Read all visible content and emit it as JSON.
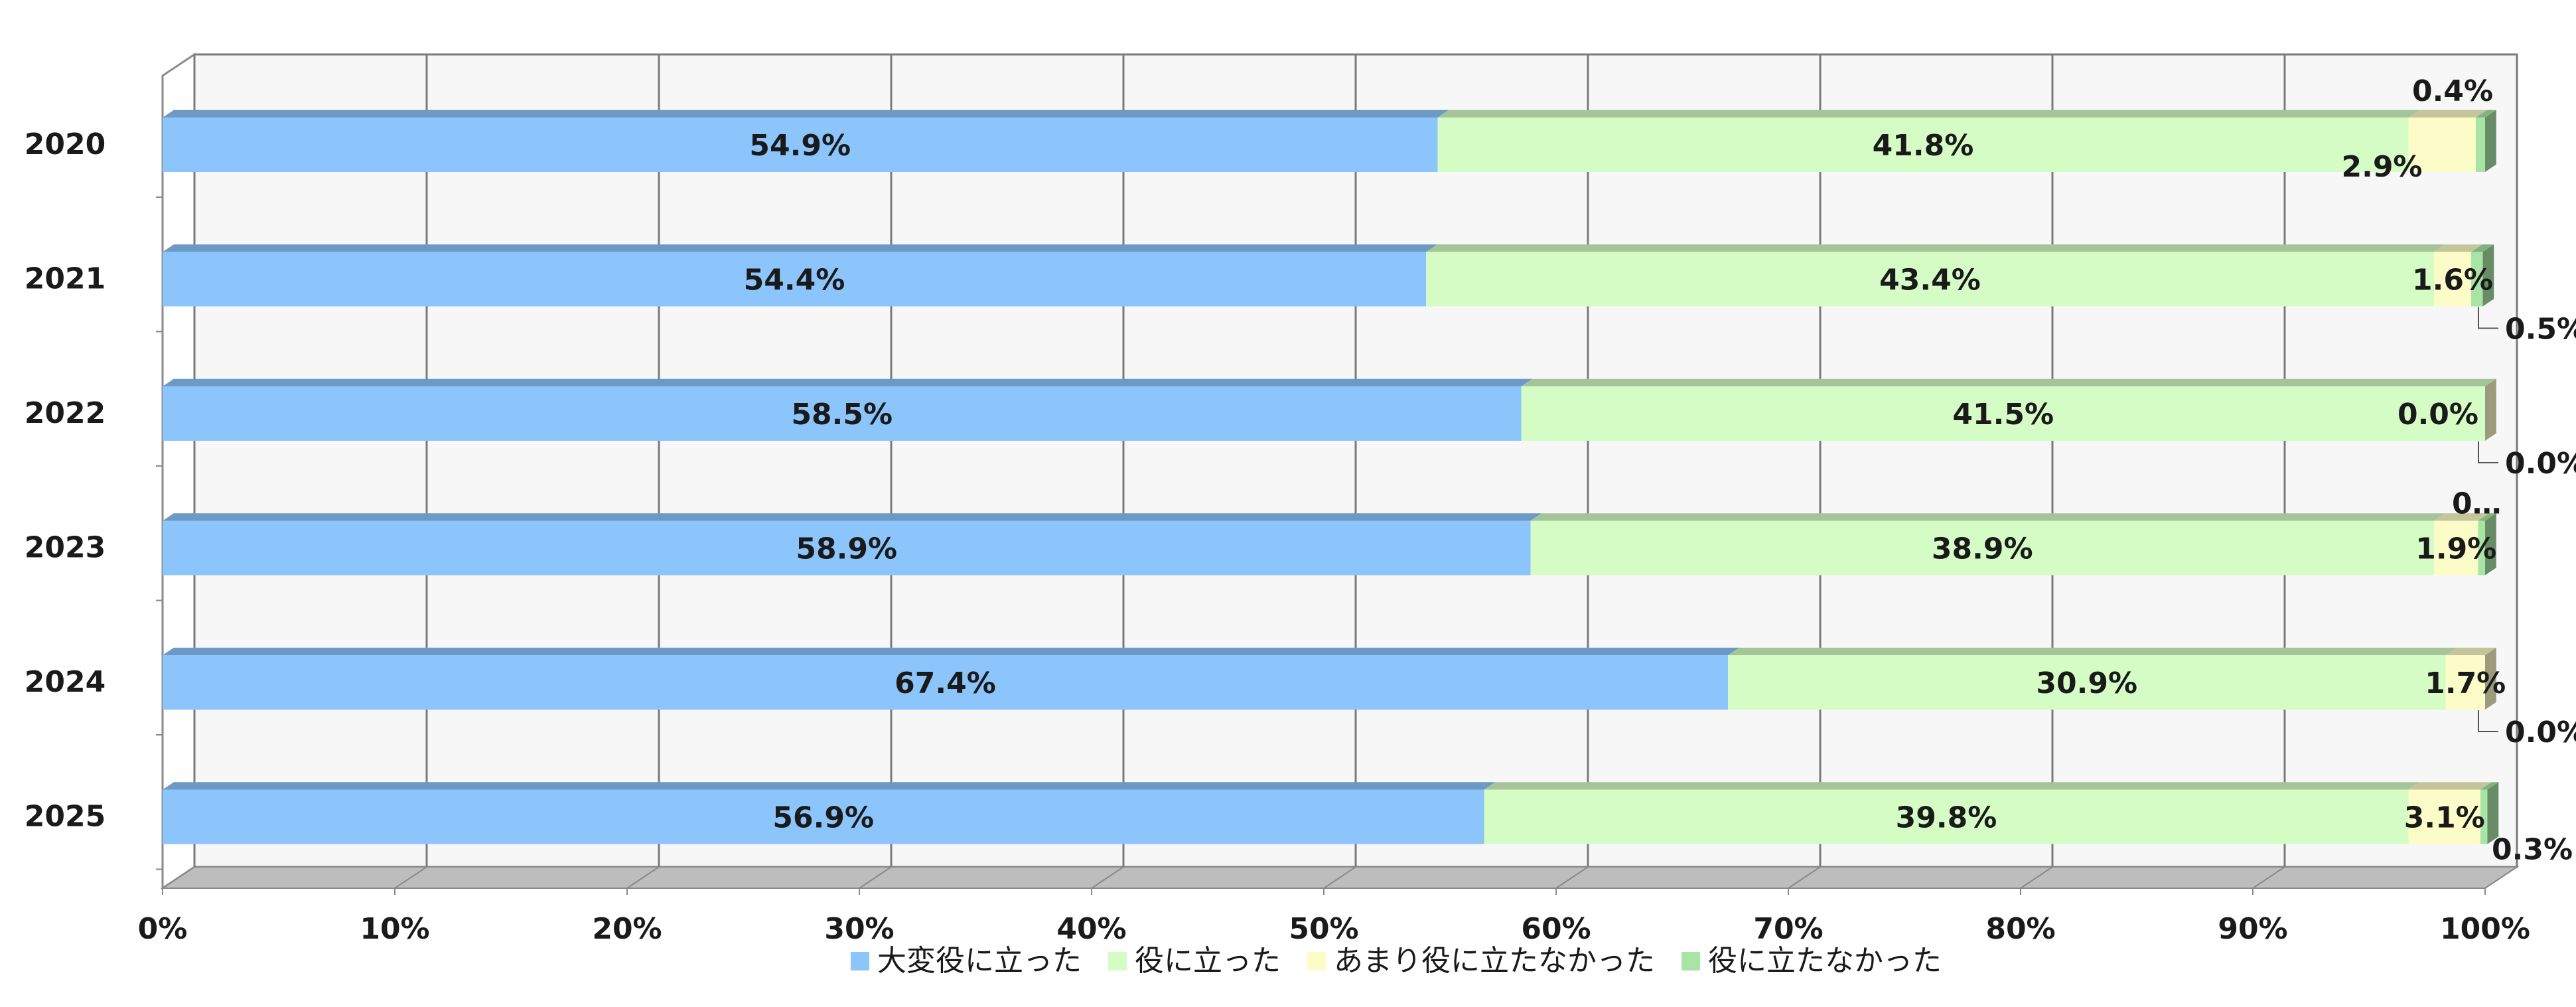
{
  "chart_data": {
    "type": "bar",
    "orientation": "horizontal",
    "stacked": "percent",
    "style": "3d",
    "categories": [
      "2020",
      "2021",
      "2022",
      "2023",
      "2024",
      "2025"
    ],
    "series": [
      {
        "name": "大変役に立った",
        "color": "#8cc4fc",
        "values": [
          54.9,
          54.4,
          58.5,
          58.9,
          67.4,
          56.9
        ],
        "labels": [
          "54.9%",
          "54.4%",
          "58.5%",
          "58.9%",
          "67.4%",
          "56.9%"
        ]
      },
      {
        "name": "役に立った",
        "color": "#d4fcc4",
        "values": [
          41.8,
          43.4,
          41.5,
          38.9,
          30.9,
          39.8
        ],
        "labels": [
          "41.8%",
          "43.4%",
          "41.5%",
          "38.9%",
          "30.9%",
          "39.8%"
        ]
      },
      {
        "name": "あまり役に立たなかった",
        "color": "#fcfcc8",
        "values": [
          2.9,
          1.6,
          0.0,
          1.9,
          1.7,
          3.1
        ],
        "labels": [
          "2.9%",
          "1.6%",
          "0.0%",
          "1.9%",
          "1.7%",
          "3.1%"
        ]
      },
      {
        "name": "役に立たなかった",
        "color": "#a8e4a4",
        "values": [
          0.4,
          0.5,
          0.0,
          0.3,
          0.0,
          0.3
        ],
        "labels": [
          "0.4%",
          "0.5%",
          "0.0%",
          "0…",
          "0.0%",
          "0.3%"
        ]
      }
    ],
    "x_ticks": [
      "0%",
      "10%",
      "20%",
      "30%",
      "40%",
      "50%",
      "60%",
      "70%",
      "80%",
      "90%",
      "100%"
    ],
    "xlim": [
      0,
      100
    ],
    "grid": true,
    "legend_position": "bottom",
    "title": "",
    "xlabel": "",
    "ylabel": ""
  }
}
